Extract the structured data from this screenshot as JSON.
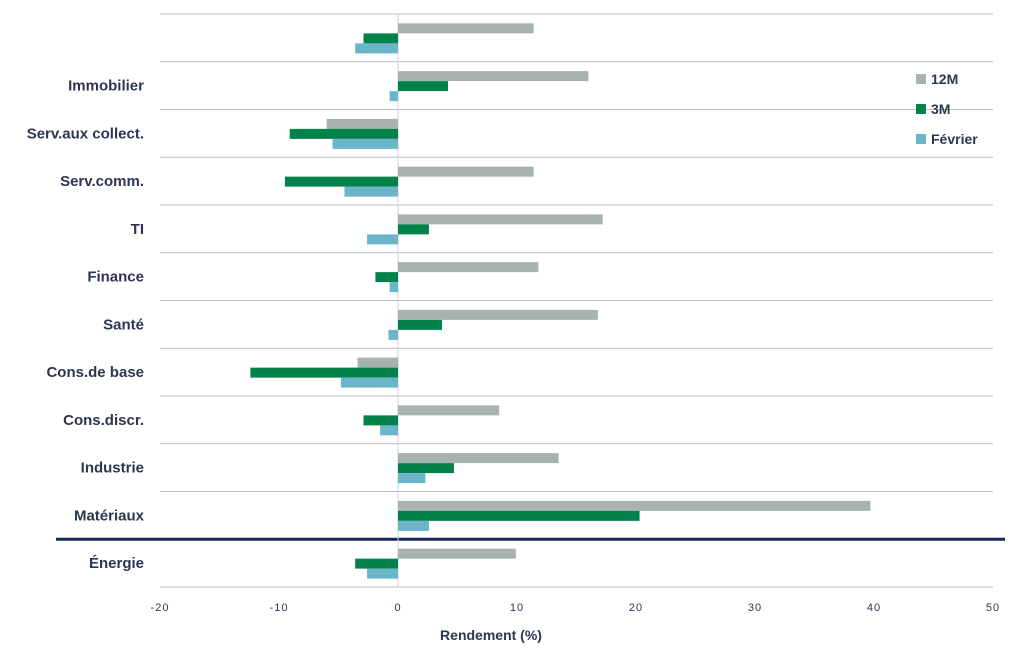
{
  "chart_data": {
    "type": "bar",
    "orientation": "horizontal",
    "categories": [
      "",
      "Immobilier",
      "Serv.aux collect.",
      "Serv.comm.",
      "TI",
      "Finance",
      "Santé",
      "Cons.de base",
      "Cons.discr.",
      "Industrie",
      "Matériaux",
      "Énergie"
    ],
    "series": [
      {
        "name": "12M",
        "color": "#a8b2ae",
        "values": [
          11.4,
          16.0,
          -6.0,
          11.4,
          17.2,
          11.8,
          16.8,
          -3.4,
          8.5,
          13.5,
          39.7,
          9.9
        ]
      },
      {
        "name": "3M",
        "color": "#00824a",
        "values": [
          -2.9,
          4.2,
          -9.1,
          -9.5,
          2.6,
          -1.9,
          3.7,
          -12.4,
          -2.9,
          4.7,
          20.3,
          -3.6
        ]
      },
      {
        "name": "Février",
        "color": "#6ab5c7",
        "values": [
          -3.6,
          -0.7,
          -5.5,
          -4.5,
          -2.6,
          -0.7,
          -0.8,
          -4.8,
          -1.5,
          2.3,
          2.6,
          -2.6
        ]
      }
    ],
    "xlim": [
      -20,
      50
    ],
    "xticks": [
      "-20",
      "-10",
      "0",
      "10",
      "20",
      "30",
      "40",
      "50"
    ],
    "xlabel": "Rendement (%)",
    "ylabel": "",
    "title": "",
    "legend_position": "top-right",
    "grid": "horizontal separators",
    "separator_after_category": "Matériaux"
  }
}
